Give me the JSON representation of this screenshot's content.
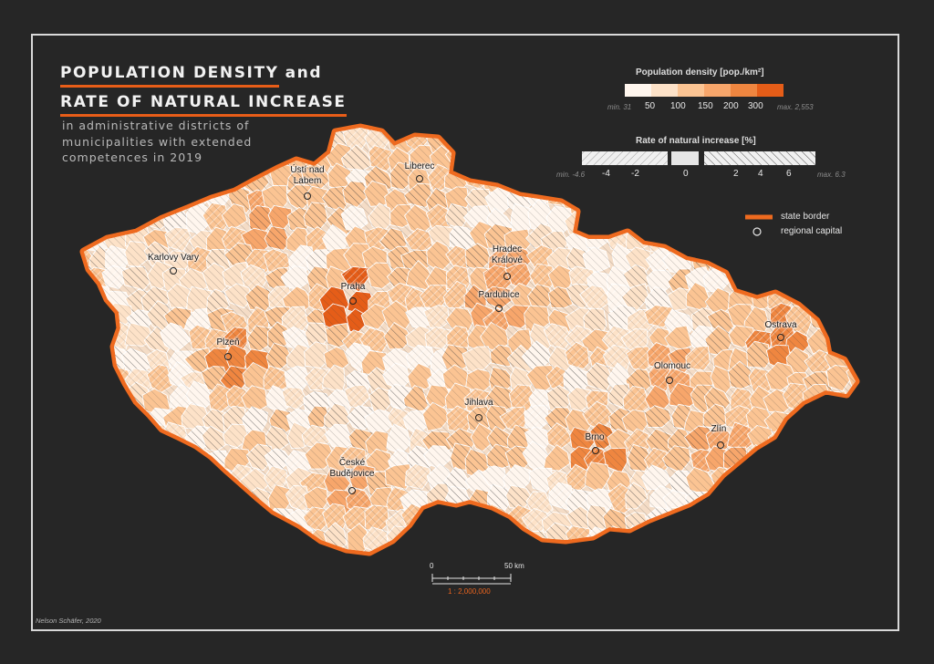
{
  "title": {
    "line1": "POPULATION DENSITY",
    "line1_suffix": "and",
    "line2": "RATE OF NATURAL INCREASE"
  },
  "subtitle": {
    "line1": "in administrative districts of",
    "line2": "municipalities with extended",
    "line3": "competences in 2019"
  },
  "density_legend": {
    "title": "Population density [pop./km²]",
    "min": "min. 31",
    "max": "max. 2,553",
    "breaks": [
      "50",
      "100",
      "150",
      "200",
      "300"
    ],
    "colors": [
      "#fff6ee",
      "#fde2c8",
      "#fbc493",
      "#f7a66b",
      "#ef8640",
      "#e55d18"
    ]
  },
  "increase_legend": {
    "title": "Rate of natural increase [%]",
    "min": "min. -4.6",
    "max": "max. 6.3",
    "breaks": [
      "-4",
      "-2",
      "0",
      "2",
      "4",
      "6"
    ]
  },
  "symbols": {
    "state_border": "state border",
    "regional_capital": "regional capital",
    "border_color": "#ee6a1f"
  },
  "scale_bar": {
    "zero": "0",
    "end": "50 km",
    "ratio": "1 : 2,000,000"
  },
  "credit": "Nelson Schäfer, 2020",
  "cities": [
    {
      "name": "Ústí nad\nLabem"
    },
    {
      "name": "Liberec"
    },
    {
      "name": "Karlovy Vary"
    },
    {
      "name": "Praha"
    },
    {
      "name": "Hradec\nKrálové"
    },
    {
      "name": "Pardubice"
    },
    {
      "name": "Plzeň"
    },
    {
      "name": "Ostrava"
    },
    {
      "name": "Olomouc"
    },
    {
      "name": "Jihlava"
    },
    {
      "name": "Zlín"
    },
    {
      "name": "Brno"
    },
    {
      "name": "České\nBudějovice"
    }
  ]
}
